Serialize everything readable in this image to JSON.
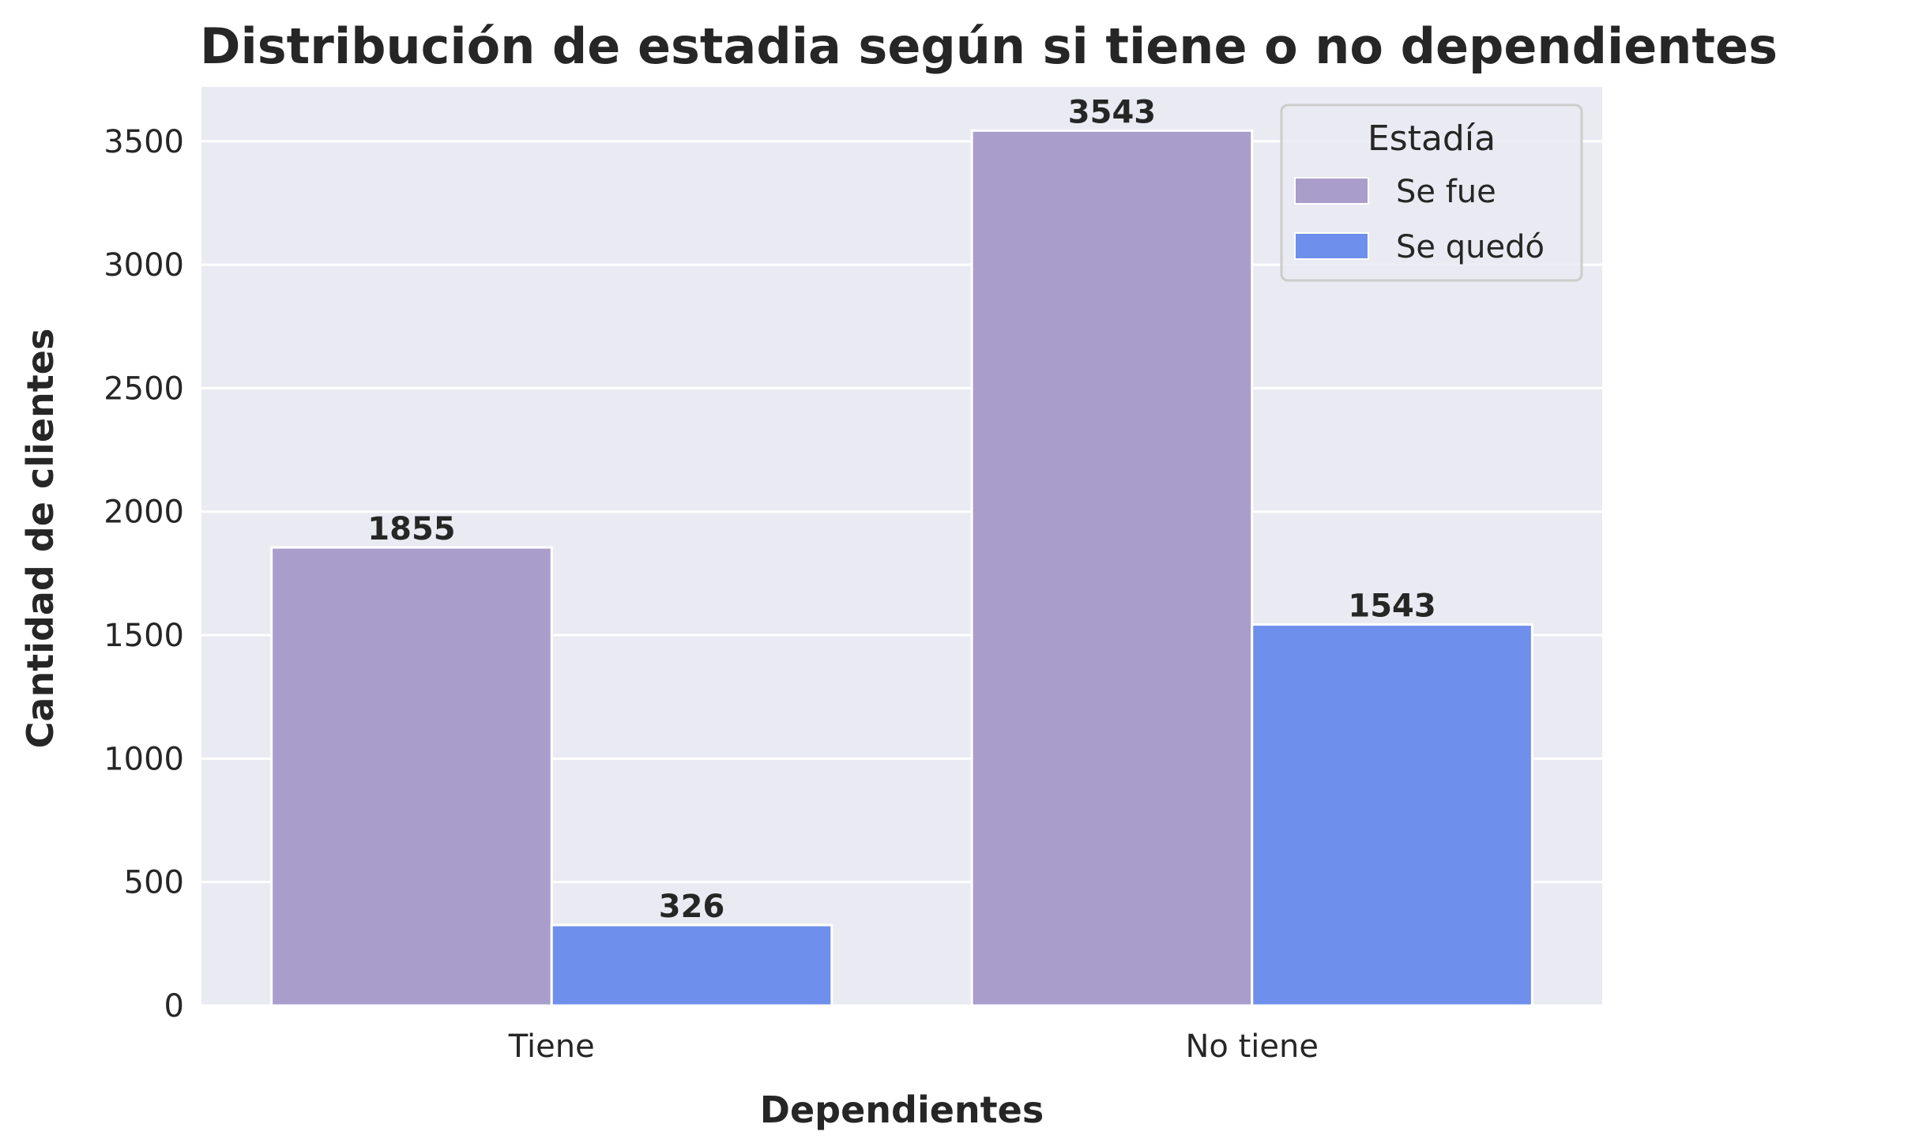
{
  "chart_data": {
    "type": "bar",
    "title": "Distribución de estadia según si tiene o no dependientes",
    "xlabel": "Dependientes",
    "ylabel": "Cantidad de clientes",
    "categories": [
      "Tiene",
      "No tiene"
    ],
    "series": [
      {
        "name": "Se fue",
        "values": [
          1855,
          3543
        ],
        "color": "#a99dcc"
      },
      {
        "name": "Se quedó",
        "values": [
          326,
          1543
        ],
        "color": "#6e8feb"
      }
    ],
    "ylim": [
      0,
      3720
    ],
    "yticks": [
      0,
      500,
      1000,
      1500,
      2000,
      2500,
      3000,
      3500
    ],
    "grid": true,
    "legend": {
      "title": "Estadía",
      "position": "top-right"
    },
    "background": "#eaeaf2",
    "data_labels": true
  }
}
